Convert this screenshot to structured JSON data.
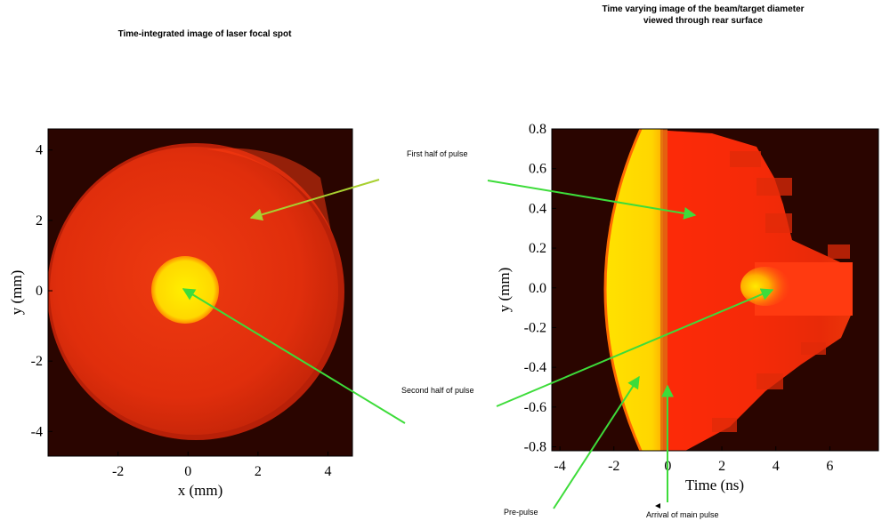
{
  "left_panel": {
    "title": "Time-integrated image of laser focal spot",
    "xlabel": "x (mm)",
    "ylabel": "y (mm)",
    "x_ticks": [
      "-2",
      "0",
      "2",
      "4"
    ],
    "y_ticks": [
      "4",
      "2",
      "0",
      "-2",
      "-4"
    ],
    "xlim": [
      -4.0,
      4.7
    ],
    "ylim": [
      -4.7,
      4.6
    ]
  },
  "right_panel": {
    "title_line1": "Time varying image of the beam/target diameter",
    "title_line2": "viewed through rear surface",
    "xlabel": "Time (ns)",
    "ylabel": "y (mm)",
    "x_ticks": [
      "-4",
      "-2",
      "0",
      "2",
      "4",
      "6"
    ],
    "y_ticks": [
      "0.8",
      "0.6",
      "0.4",
      "0.2",
      "0.0",
      "-0.2",
      "-0.4",
      "-0.6",
      "-0.8"
    ],
    "xlim": [
      -4.3,
      7.8
    ],
    "ylim": [
      -0.82,
      0.8
    ]
  },
  "annotations": {
    "first_half": "First half of pulse",
    "second_half": "Second half of pulse",
    "pre_pulse": "Pre-pulse",
    "arrival": "Arrival of main pulse"
  },
  "colors": {
    "background_dark": "#2a0500",
    "disk_red": "#e8300e",
    "hot_spot_yellow": "#ffe100",
    "arrow_green": "#3ddc3a",
    "arrow_olive": "#a8d030"
  }
}
